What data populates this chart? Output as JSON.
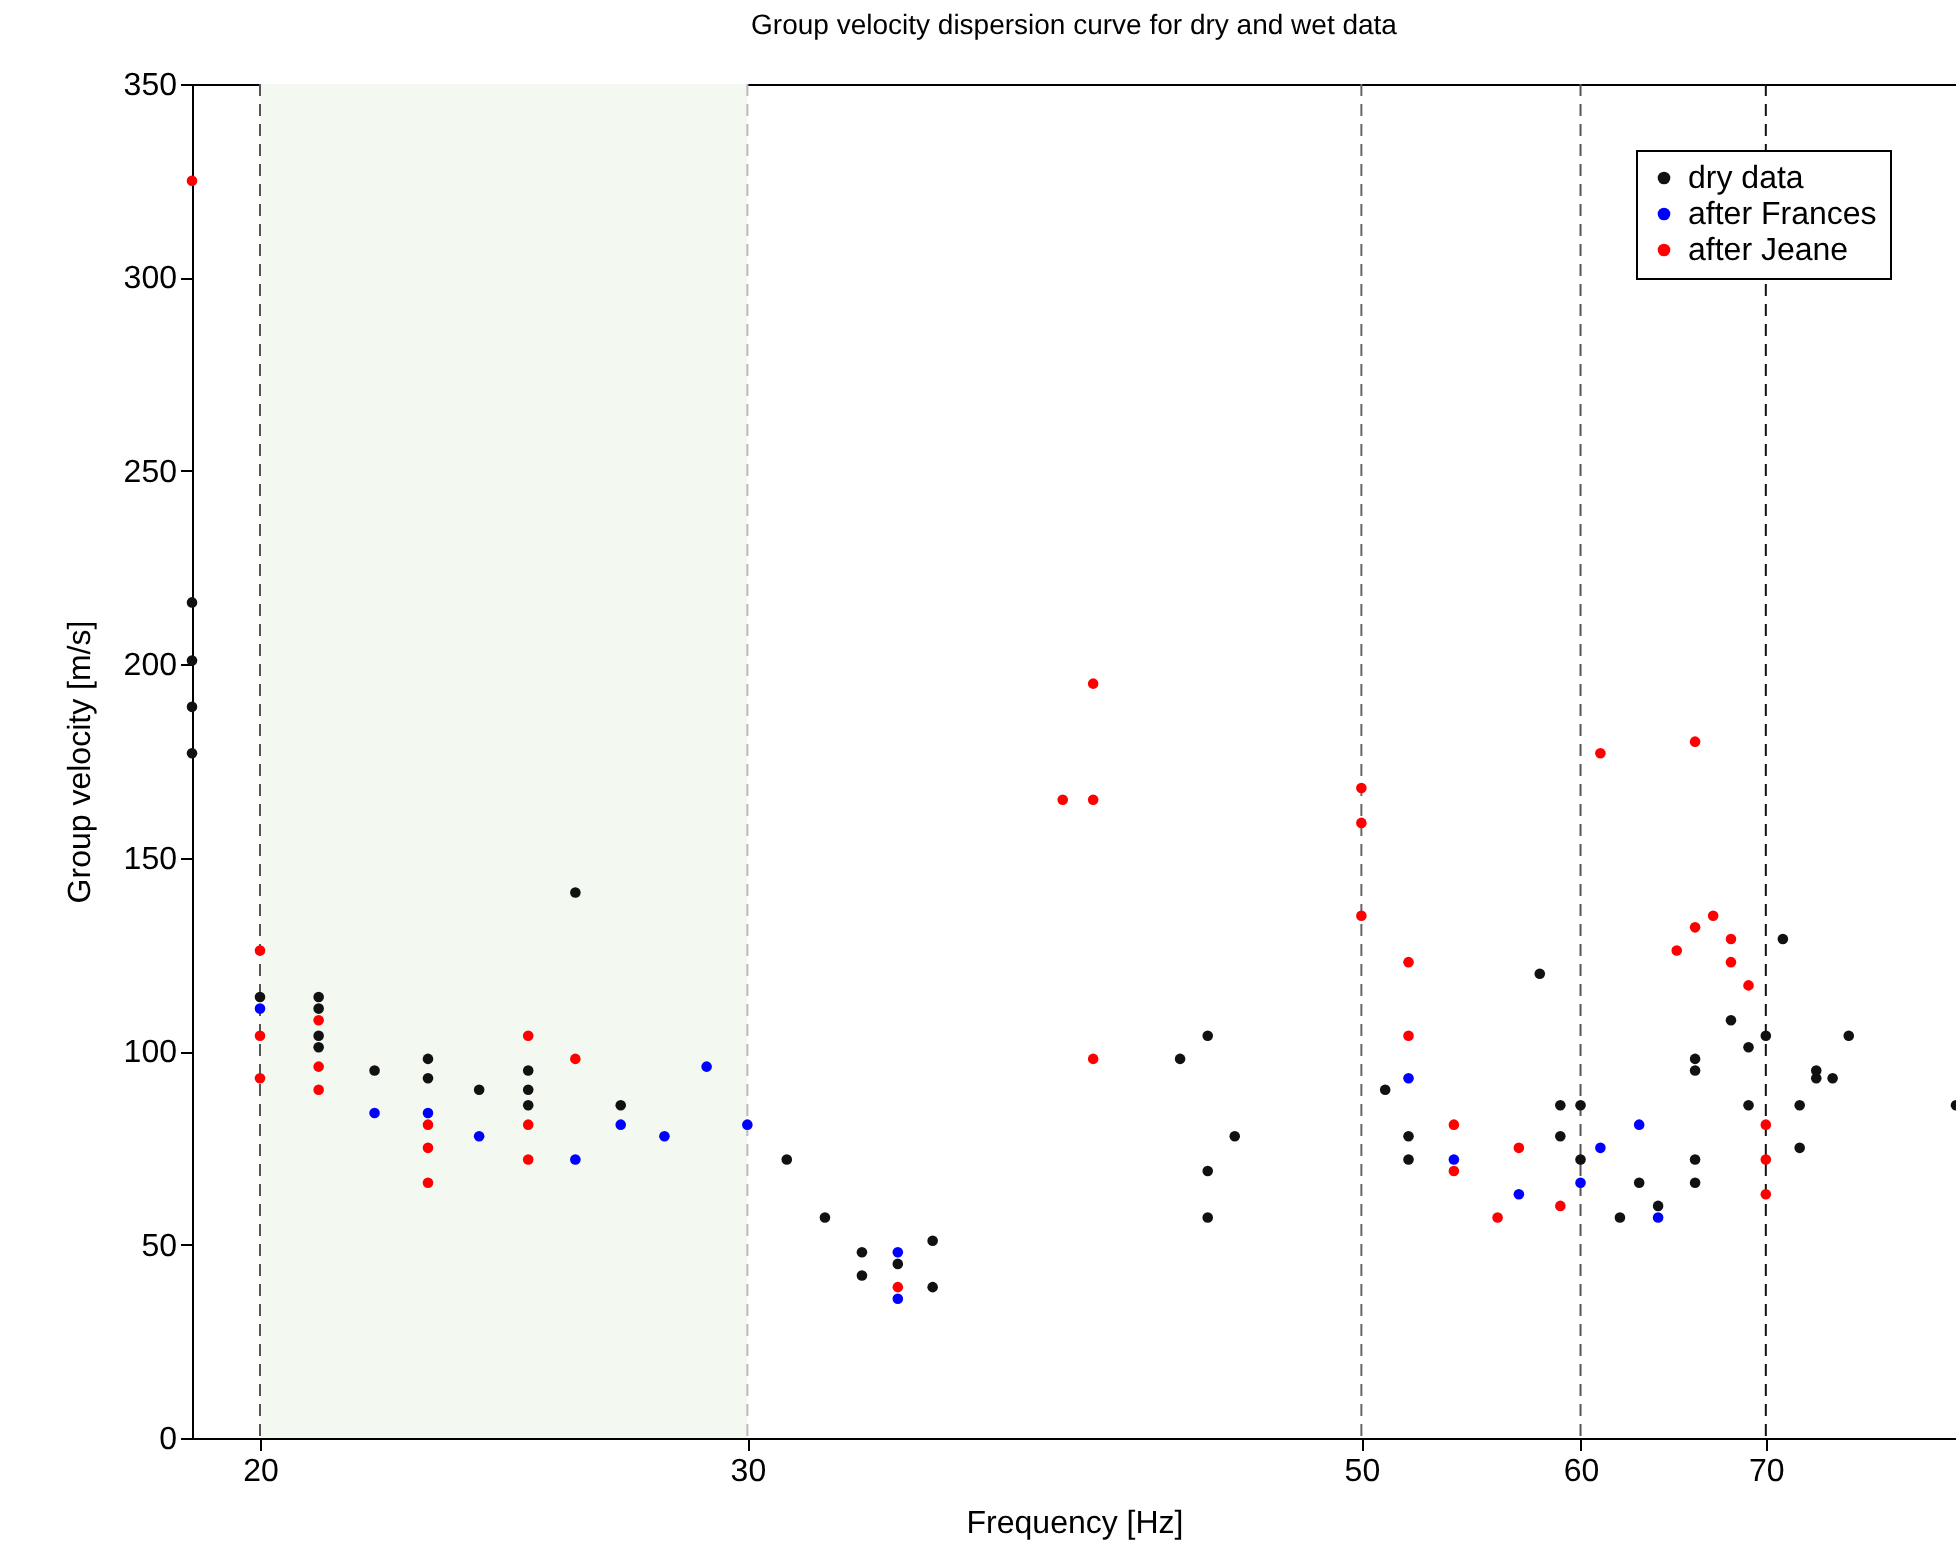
{
  "chart_data": {
    "type": "scatter",
    "title": "Group velocity dispersion curve for dry and wet data",
    "xlabel": "Frequency [Hz]",
    "ylabel": "Group velocity [m/s]",
    "log": "x",
    "xlim": [
      18.9,
      82
    ],
    "xticks": [
      20,
      30,
      50,
      60,
      70
    ],
    "ylim": [
      0,
      350
    ],
    "yticks": [
      0,
      50,
      100,
      150,
      200,
      250,
      300,
      350
    ],
    "grid": false,
    "legend": "top right",
    "marker": "circle",
    "bands": [
      {
        "axis": "x",
        "from": 20,
        "to": 30,
        "color": "#f3f9f1"
      }
    ],
    "ref_lines": [
      {
        "axis": "x",
        "value": 20,
        "color": "#555555",
        "line_style": "dashed"
      },
      {
        "axis": "x",
        "value": 30,
        "color": "#bbbbbb",
        "line_style": "dashed"
      },
      {
        "axis": "x",
        "value": 50,
        "color": "#666666",
        "line_style": "dashed"
      },
      {
        "axis": "x",
        "value": 60,
        "color": "#555555",
        "line_style": "dashed"
      },
      {
        "axis": "x",
        "value": 70,
        "color": "#111111",
        "line_style": "dashed"
      }
    ],
    "series": [
      {
        "name": "dry data",
        "color": "#111111",
        "x": [
          18.9,
          18.9,
          18.9,
          18.9,
          20,
          21,
          21,
          21,
          21,
          22,
          23,
          23,
          24,
          25,
          25,
          25,
          26,
          27,
          31,
          32,
          33,
          33,
          34,
          35,
          35,
          43,
          44,
          44,
          44,
          45,
          51,
          52,
          52,
          58,
          59,
          59,
          60,
          60,
          62,
          63,
          64,
          66,
          66,
          66,
          66,
          68,
          69,
          69,
          70,
          71,
          72,
          72,
          73,
          73,
          74,
          75,
          82
        ],
        "values": [
          216,
          201,
          189,
          177,
          114,
          114,
          111,
          104,
          101,
          95,
          98,
          93,
          90,
          95,
          90,
          86,
          141,
          86,
          72,
          57,
          48,
          42,
          45,
          51,
          39,
          98,
          104,
          69,
          57,
          78,
          90,
          78,
          72,
          120,
          86,
          78,
          86,
          72,
          57,
          66,
          60,
          98,
          95,
          72,
          66,
          108,
          101,
          86,
          104,
          129,
          86,
          75,
          95,
          93,
          93,
          104,
          86
        ]
      },
      {
        "name": "after Frances",
        "color": "#0000ff",
        "x": [
          20,
          22,
          23,
          24,
          26,
          27,
          28,
          29,
          30,
          34,
          34,
          52,
          54,
          57,
          60,
          61,
          63,
          64
        ],
        "values": [
          111,
          84,
          84,
          78,
          72,
          81,
          78,
          96,
          81,
          48,
          36,
          93,
          72,
          63,
          66,
          75,
          81,
          57
        ]
      },
      {
        "name": "after Jeane",
        "color": "#ff0000",
        "x": [
          18.9,
          20,
          20,
          20,
          21,
          21,
          21,
          23,
          23,
          23,
          25,
          25,
          25,
          26,
          34,
          39,
          40,
          40,
          40,
          50,
          50,
          50,
          52,
          52,
          54,
          54,
          56,
          57,
          59,
          61,
          65,
          66,
          66,
          67,
          68,
          68,
          69,
          70,
          70,
          70
        ],
        "values": [
          325,
          126,
          104,
          93,
          108,
          96,
          90,
          81,
          75,
          66,
          104,
          81,
          72,
          98,
          39,
          165,
          165,
          195,
          98,
          168,
          159,
          135,
          123,
          104,
          81,
          69,
          57,
          75,
          60,
          177,
          126,
          180,
          132,
          135,
          129,
          123,
          117,
          81,
          72,
          63
        ]
      }
    ]
  }
}
